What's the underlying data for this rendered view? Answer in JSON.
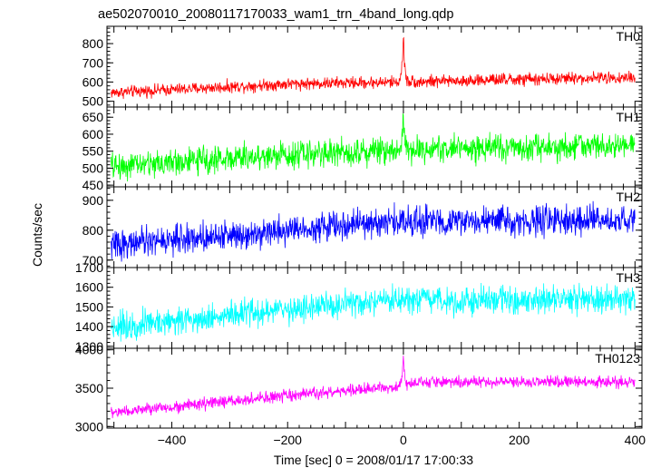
{
  "figure": {
    "title": "ae502070010_20080117170033_wam1_trn_4band_long.qdp",
    "ylabel": "Counts/sec",
    "xlabel": "Time [sec] 0 = 2008/01/17 17:00:33"
  },
  "chart_data": [
    {
      "type": "line",
      "title": "TH0",
      "color": "#ff0000",
      "xlim": [
        -512,
        412
      ],
      "ylim": [
        470,
        890
      ],
      "yticks": [
        500,
        600,
        700,
        800
      ],
      "x_range": [
        -505,
        400
      ],
      "baseline": [
        [
          -505,
          545
        ],
        [
          -200,
          590
        ],
        [
          -10,
          600
        ],
        [
          400,
          625
        ]
      ],
      "noise": 22,
      "spike": {
        "x": 0,
        "y": 885
      },
      "grid": false
    },
    {
      "type": "line",
      "title": "TH1",
      "color": "#00ff00",
      "xlim": [
        -512,
        412
      ],
      "ylim": [
        445,
        680
      ],
      "yticks": [
        450,
        500,
        550,
        600,
        650
      ],
      "x_range": [
        -505,
        400
      ],
      "baseline": [
        [
          -505,
          505
        ],
        [
          -200,
          540
        ],
        [
          0,
          555
        ],
        [
          400,
          565
        ]
      ],
      "noise": 28,
      "spike": {
        "x": 0,
        "y": 680
      },
      "grid": false
    },
    {
      "type": "line",
      "title": "TH2",
      "color": "#0000ff",
      "xlim": [
        -512,
        412
      ],
      "ylim": [
        675,
        945
      ],
      "yticks": [
        700,
        800,
        900
      ],
      "x_range": [
        -505,
        400
      ],
      "baseline": [
        [
          -505,
          750
        ],
        [
          -150,
          810
        ],
        [
          0,
          830
        ],
        [
          400,
          830
        ]
      ],
      "noise": 34,
      "spike": null,
      "grid": false
    },
    {
      "type": "line",
      "title": "TH3",
      "color": "#00ffff",
      "xlim": [
        -512,
        412
      ],
      "ylim": [
        1290,
        1700
      ],
      "yticks": [
        1300,
        1400,
        1500,
        1600,
        1700
      ],
      "x_range": [
        -505,
        400
      ],
      "baseline": [
        [
          -505,
          1400
        ],
        [
          -150,
          1500
        ],
        [
          0,
          1530
        ],
        [
          400,
          1540
        ]
      ],
      "noise": 50,
      "spike": null,
      "grid": false
    },
    {
      "type": "line",
      "title": "TH0123",
      "color": "#ff00ff",
      "xlim": [
        -512,
        412
      ],
      "ylim": [
        2980,
        4020
      ],
      "yticks": [
        3000,
        3500,
        4000
      ],
      "x_range": [
        -505,
        400
      ],
      "baseline": [
        [
          -505,
          3180
        ],
        [
          -200,
          3400
        ],
        [
          -10,
          3520
        ],
        [
          20,
          3580
        ],
        [
          400,
          3580
        ]
      ],
      "noise": 55,
      "spike": {
        "x": 0,
        "y": 3990
      },
      "xticks": [
        -400,
        -200,
        0,
        200,
        400
      ],
      "grid": false
    }
  ]
}
